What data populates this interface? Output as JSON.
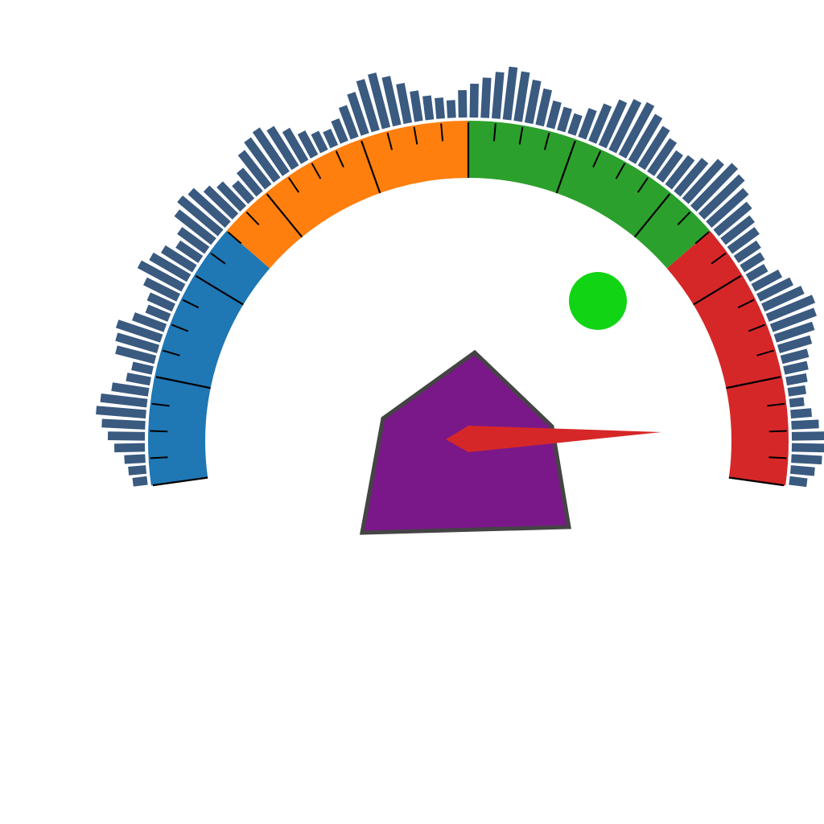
{
  "colors": {
    "background": "#ffffff",
    "band_blue": "#1f77b4",
    "band_orange": "#ff7f0e",
    "band_green": "#2ca02c",
    "band_red": "#d62728",
    "histogram_bars": "#3a5a80",
    "tick_marks": "#000000",
    "needle": "#d62728",
    "indicator_dot": "#11d415",
    "pentagon_fill": "#7a1889",
    "pentagon_stroke": "#444444"
  },
  "chart_data": {
    "type": "gauge",
    "title": "",
    "range": [
      0,
      100
    ],
    "start_angle_deg": 188,
    "end_angle_deg": -8,
    "bands": [
      {
        "from": 0,
        "to": 25,
        "color": "#1f77b4"
      },
      {
        "from": 25,
        "to": 50,
        "color": "#ff7f0e"
      },
      {
        "from": 50,
        "to": 75,
        "color": "#2ca02c"
      },
      {
        "from": 75,
        "to": 100,
        "color": "#d62728"
      }
    ],
    "major_ticks": [
      0,
      10,
      20,
      30,
      40,
      50,
      60,
      70,
      80,
      90,
      100
    ],
    "minor_tick_step": 2.5,
    "needle_value": 96.8,
    "outer_histogram": {
      "values": [
        3,
        4,
        5,
        8,
        10,
        12,
        14,
        13,
        10,
        6,
        5,
        11,
        12,
        13,
        9,
        6,
        7,
        10,
        14,
        12,
        10,
        7,
        9,
        13,
        15,
        14,
        11,
        9,
        6,
        8,
        12,
        14,
        15,
        13,
        10,
        7,
        5,
        4,
        6,
        9,
        12,
        15,
        16,
        14,
        11,
        8,
        6,
        5,
        4,
        7,
        9,
        11,
        13,
        15,
        14,
        12,
        10,
        7,
        6,
        5,
        8,
        11,
        14,
        16,
        17,
        15,
        13,
        11,
        9,
        10,
        12,
        15,
        17,
        16,
        14,
        12,
        10,
        9,
        7,
        6,
        5,
        8,
        10,
        12,
        14,
        13,
        11,
        9,
        7,
        6,
        5,
        4,
        3,
        5,
        7,
        9,
        10,
        8,
        6,
        4
      ]
    },
    "indicator_dot": {
      "value": 72,
      "color": "#11d415"
    },
    "pentagon_marker": {
      "vertices": 5,
      "color": "#7a1889"
    }
  }
}
